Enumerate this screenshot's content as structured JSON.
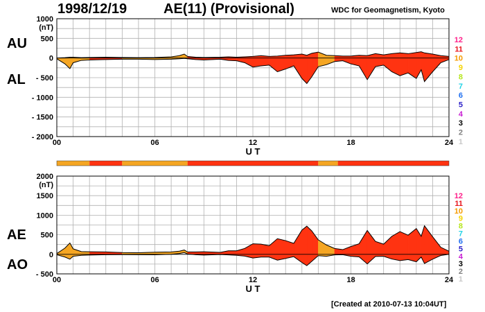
{
  "header": {
    "date": "1998/12/19",
    "title": "AE(11) (Provisional)",
    "source": "WDC for Geomagnetism, Kyoto"
  },
  "footer": "[Created at 2010-07-13 10:04UT]",
  "colors": {
    "fill_quiet": "#f5a623",
    "fill_active": "#ff3311",
    "line": "#000000",
    "grid": "#b0b0b0"
  },
  "activity_levels": [
    {
      "label": "12",
      "color": "#ff1f8a"
    },
    {
      "label": "11",
      "color": "#e8141c"
    },
    {
      "label": "10",
      "color": "#f59a00"
    },
    {
      "label": "9",
      "color": "#f5d400"
    },
    {
      "label": "8",
      "color": "#b5e61d"
    },
    {
      "label": "7",
      "color": "#22d3e6"
    },
    {
      "label": "6",
      "color": "#1f6ff0"
    },
    {
      "label": "5",
      "color": "#2b1fc8"
    },
    {
      "label": "4",
      "color": "#c81fd3"
    },
    {
      "label": "3",
      "color": "#000000"
    },
    {
      "label": "2",
      "color": "#808080"
    },
    {
      "label": "1",
      "color": "#c8c8c8"
    }
  ],
  "chart_data": [
    {
      "type": "area",
      "panel": "AU/AL",
      "labels": {
        "upper": "AU",
        "lower": "AL"
      },
      "yunit": "(nT)",
      "xlabel": "U T",
      "xlim": [
        0,
        24
      ],
      "ylim": [
        -2000,
        1000
      ],
      "xticks": [
        0,
        6,
        12,
        18,
        24
      ],
      "xtick_labels": [
        "00",
        "06",
        "12",
        "18",
        "24"
      ],
      "yticks": [
        1000,
        500,
        0,
        -500,
        -1000,
        -1500,
        -2000
      ],
      "ytick_labels": [
        "1000",
        "500",
        "0",
        "- 500",
        "- 1000",
        "- 1500",
        "- 2000"
      ],
      "series": [
        {
          "name": "AU",
          "x": [
            0,
            0.5,
            0.8,
            1,
            1.5,
            2,
            3,
            4,
            5,
            6,
            7,
            7.5,
            7.8,
            8,
            8.5,
            9,
            10,
            10.5,
            11,
            11.5,
            12,
            12.5,
            13,
            13.5,
            14,
            14.5,
            15,
            15.3,
            15.6,
            16,
            16.5,
            17,
            17.5,
            18,
            18.5,
            19,
            19.5,
            20,
            20.5,
            21,
            21.5,
            22,
            22.3,
            22.5,
            23,
            23.5,
            24
          ],
          "values": [
            0,
            10,
            20,
            20,
            10,
            15,
            20,
            15,
            10,
            15,
            30,
            60,
            100,
            40,
            20,
            15,
            20,
            30,
            20,
            30,
            40,
            60,
            40,
            50,
            70,
            80,
            100,
            70,
            120,
            150,
            70,
            60,
            50,
            50,
            70,
            60,
            110,
            80,
            110,
            130,
            110,
            140,
            160,
            130,
            100,
            60,
            40
          ]
        },
        {
          "name": "AL",
          "x": [
            0,
            0.5,
            0.8,
            1,
            1.5,
            2,
            3,
            4,
            5,
            6,
            7,
            7.5,
            7.8,
            8,
            8.5,
            9,
            10,
            10.5,
            11,
            11.5,
            12,
            12.5,
            13,
            13.5,
            14,
            14.5,
            15,
            15.3,
            15.6,
            16,
            16.5,
            17,
            17.5,
            18,
            18.5,
            19,
            19.5,
            20,
            20.5,
            21,
            21.5,
            22,
            22.3,
            22.5,
            23,
            23.5,
            24
          ],
          "values": [
            -20,
            -150,
            -270,
            -120,
            -60,
            -50,
            -40,
            -30,
            -30,
            -40,
            -30,
            -20,
            -10,
            -20,
            -40,
            -50,
            -30,
            -60,
            -70,
            -120,
            -230,
            -200,
            -180,
            -350,
            -280,
            -200,
            -520,
            -650,
            -480,
            -220,
            -170,
            -90,
            -70,
            -150,
            -200,
            -550,
            -220,
            -180,
            -350,
            -450,
            -380,
            -520,
            -300,
            -600,
            -350,
            -120,
            -40
          ]
        }
      ]
    },
    {
      "type": "area",
      "panel": "AE/AO",
      "labels": {
        "upper": "AE",
        "lower": "AO"
      },
      "yunit": "(nT)",
      "xlabel": "U T",
      "xlim": [
        0,
        24
      ],
      "ylim": [
        -500,
        2000
      ],
      "xticks": [
        0,
        6,
        12,
        18,
        24
      ],
      "xtick_labels": [
        "00",
        "06",
        "12",
        "18",
        "24"
      ],
      "yticks": [
        2000,
        1500,
        1000,
        500,
        0,
        -500
      ],
      "ytick_labels": [
        "2000",
        "1500",
        "1000",
        "500",
        "0",
        "- 500"
      ],
      "series": [
        {
          "name": "AE",
          "x": [
            0,
            0.5,
            0.8,
            1,
            1.5,
            2,
            3,
            4,
            5,
            6,
            7,
            7.5,
            7.8,
            8,
            8.5,
            9,
            10,
            10.5,
            11,
            11.5,
            12,
            12.5,
            13,
            13.5,
            14,
            14.5,
            15,
            15.3,
            15.6,
            16,
            16.5,
            17,
            17.5,
            18,
            18.5,
            19,
            19.5,
            20,
            20.5,
            21,
            21.5,
            22,
            22.3,
            22.5,
            23,
            23.5,
            24
          ],
          "values": [
            20,
            160,
            290,
            140,
            70,
            65,
            60,
            45,
            40,
            55,
            60,
            80,
            110,
            60,
            60,
            65,
            50,
            90,
            90,
            150,
            270,
            260,
            220,
            400,
            350,
            280,
            620,
            720,
            600,
            370,
            240,
            150,
            120,
            200,
            270,
            610,
            330,
            260,
            460,
            580,
            490,
            660,
            460,
            730,
            450,
            180,
            80
          ]
        },
        {
          "name": "AO",
          "x": [
            0,
            0.5,
            0.8,
            1,
            1.5,
            2,
            3,
            4,
            5,
            6,
            7,
            7.5,
            7.8,
            8,
            8.5,
            9,
            10,
            10.5,
            11,
            11.5,
            12,
            12.5,
            13,
            13.5,
            14,
            14.5,
            15,
            15.3,
            15.6,
            16,
            16.5,
            17,
            17.5,
            18,
            18.5,
            19,
            19.5,
            20,
            20.5,
            21,
            21.5,
            22,
            22.3,
            22.5,
            23,
            23.5,
            24
          ],
          "values": [
            -10,
            -70,
            -125,
            -50,
            -25,
            -18,
            -10,
            -8,
            -10,
            -12,
            0,
            20,
            45,
            10,
            -10,
            -18,
            -5,
            -15,
            -25,
            -45,
            -95,
            -70,
            -70,
            -150,
            -105,
            -60,
            -210,
            -290,
            -180,
            -35,
            -50,
            -15,
            -10,
            -50,
            -65,
            -245,
            -55,
            -50,
            -120,
            -160,
            -135,
            -190,
            -70,
            -235,
            -125,
            -30,
            0
          ]
        }
      ]
    }
  ],
  "activity_bar": {
    "segments": [
      {
        "start": 0,
        "end": 2,
        "level": 10
      },
      {
        "start": 2,
        "end": 4,
        "level": 11
      },
      {
        "start": 4,
        "end": 8,
        "level": 10
      },
      {
        "start": 8,
        "end": 16,
        "level": 11
      },
      {
        "start": 16,
        "end": 17.2,
        "level": 10
      },
      {
        "start": 17.2,
        "end": 24,
        "level": 11
      }
    ]
  }
}
